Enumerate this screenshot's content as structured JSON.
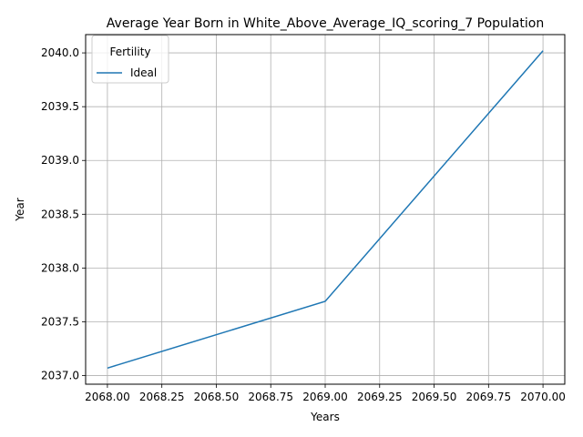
{
  "chart_data": {
    "type": "line",
    "title": "Average Year Born in White_Above_Average_IQ_scoring_7 Population",
    "xlabel": "Years",
    "ylabel": "Year",
    "xlim": [
      2067.9,
      2070.1
    ],
    "ylim": [
      2036.92,
      2040.17
    ],
    "xticks": [
      2068.0,
      2068.25,
      2068.5,
      2068.75,
      2069.0,
      2069.25,
      2069.5,
      2069.75,
      2070.0
    ],
    "xtick_labels": [
      "2068.00",
      "2068.25",
      "2068.50",
      "2068.75",
      "2069.00",
      "2069.25",
      "2069.50",
      "2069.75",
      "2070.00"
    ],
    "yticks": [
      2037.0,
      2037.5,
      2038.0,
      2038.5,
      2039.0,
      2039.5,
      2040.0
    ],
    "ytick_labels": [
      "2037.0",
      "2037.5",
      "2038.0",
      "2038.5",
      "2039.0",
      "2039.5",
      "2040.0"
    ],
    "grid": true,
    "legend": {
      "title": "Fertility",
      "placement": "top-left"
    },
    "series": [
      {
        "name": "Ideal",
        "color": "#1f77b4",
        "x": [
          2068,
          2069,
          2070
        ],
        "y": [
          2037.07,
          2037.69,
          2040.02
        ]
      }
    ]
  }
}
